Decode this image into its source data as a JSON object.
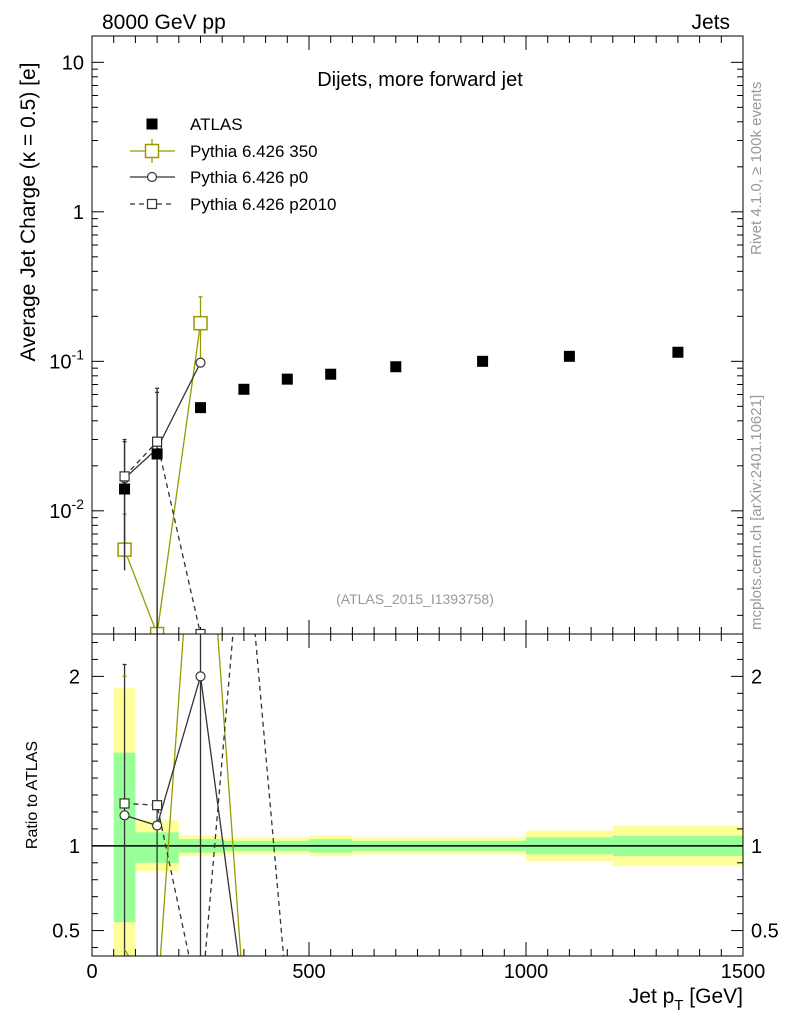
{
  "header": {
    "left": "8000 GeV pp",
    "right": "Jets"
  },
  "side_labels": {
    "top": "Rivet 4.1.0, ≥ 100k events",
    "bottom": "mcplots.cern.ch [arXiv:2401.10621]"
  },
  "colors": {
    "data": "#000000",
    "pythia350": "#999900",
    "pythia_p0": "#333333",
    "pythia_p2010": "#333333",
    "band_inner": "#99ff99",
    "band_outer": "#ffff99"
  },
  "chart_data": [
    {
      "panel": "main",
      "type": "scatter",
      "title": "Dijets, more forward jet",
      "xlabel": "Jet p_T [GeV]",
      "ylabel": "Average Jet Charge (κ = 0.5) [e]",
      "yscale": "log",
      "xlim": [
        0,
        1500
      ],
      "ylim": [
        0.0015,
        15
      ],
      "y_tick_labels": [
        "10^{-2}",
        "10^{-1}",
        "1",
        "10"
      ],
      "x_tick_labels": [
        "0",
        "500",
        "1000",
        "1500"
      ],
      "watermark": "(ATLAS_2015_I1393758)",
      "legend_position": "top-left",
      "series": [
        {
          "name": "ATLAS",
          "style": "filled-square",
          "x": [
            75,
            150,
            250,
            350,
            450,
            550,
            700,
            900,
            1100,
            1350
          ],
          "y": [
            0.014,
            0.024,
            0.049,
            0.065,
            0.076,
            0.082,
            0.092,
            0.1,
            0.108,
            0.115
          ]
        },
        {
          "name": "Pythia 6.426 350",
          "style": "open-square-solid",
          "x": [
            75,
            150,
            250
          ],
          "y": [
            0.0055,
            0.0015,
            0.18
          ],
          "yerr_hi": [
            0.0095,
            null,
            0.27
          ],
          "yerr_lo": [
            0.004,
            null,
            0.1
          ]
        },
        {
          "name": "Pythia 6.426 p0",
          "style": "open-circle-solid",
          "x": [
            75,
            150,
            250
          ],
          "y": [
            0.0165,
            0.026,
            0.098
          ],
          "yerr_hi": [
            0.029,
            0.062,
            null
          ],
          "yerr_lo": [
            0.004,
            null,
            null
          ]
        },
        {
          "name": "Pythia 6.426 p2010",
          "style": "open-square-dashed",
          "x": [
            75,
            150,
            250
          ],
          "y": [
            0.017,
            0.029,
            0.0015
          ],
          "yerr_hi": [
            0.03,
            0.066,
            null
          ],
          "yerr_lo": [
            0.005,
            null,
            null
          ]
        }
      ]
    },
    {
      "panel": "ratio",
      "type": "line",
      "ylabel": "Ratio to ATLAS",
      "xlim": [
        0,
        1500
      ],
      "ylim": [
        0.35,
        2.25
      ],
      "y_tick_labels": [
        "0.5",
        "1",
        "2"
      ],
      "uncertainty_bands": {
        "bin_edges": [
          50,
          100,
          200,
          300,
          400,
          500,
          600,
          800,
          1000,
          1200,
          1500
        ],
        "inner_lo": [
          0.55,
          0.9,
          0.96,
          0.97,
          0.97,
          0.96,
          0.97,
          0.97,
          0.95,
          0.94
        ],
        "inner_hi": [
          1.55,
          1.08,
          1.04,
          1.03,
          1.03,
          1.04,
          1.03,
          1.03,
          1.05,
          1.06
        ],
        "outer_lo": [
          0.35,
          0.85,
          0.94,
          0.95,
          0.95,
          0.94,
          0.95,
          0.95,
          0.91,
          0.88
        ],
        "outer_hi": [
          1.93,
          1.15,
          1.06,
          1.05,
          1.05,
          1.06,
          1.05,
          1.05,
          1.09,
          1.12
        ]
      },
      "series": [
        {
          "name": "Pythia 6.426 350",
          "x": [
            75,
            150,
            250,
            350
          ],
          "y": [
            0.39,
            0.07,
            3.67,
            0.1
          ],
          "markers": [
            false,
            true,
            true,
            false
          ]
        },
        {
          "name": "Pythia 6.426 p0",
          "x": [
            75,
            150,
            250,
            350
          ],
          "y": [
            1.18,
            1.12,
            2.0,
            0.1
          ],
          "markers": [
            true,
            true,
            true,
            false
          ]
        },
        {
          "name": "Pythia 6.426 p2010",
          "x": [
            75,
            150,
            250,
            350,
            450
          ],
          "y": [
            1.25,
            1.24,
            0.03,
            3.0,
            0.1
          ],
          "markers": [
            true,
            true,
            false,
            false,
            false
          ]
        }
      ]
    }
  ]
}
